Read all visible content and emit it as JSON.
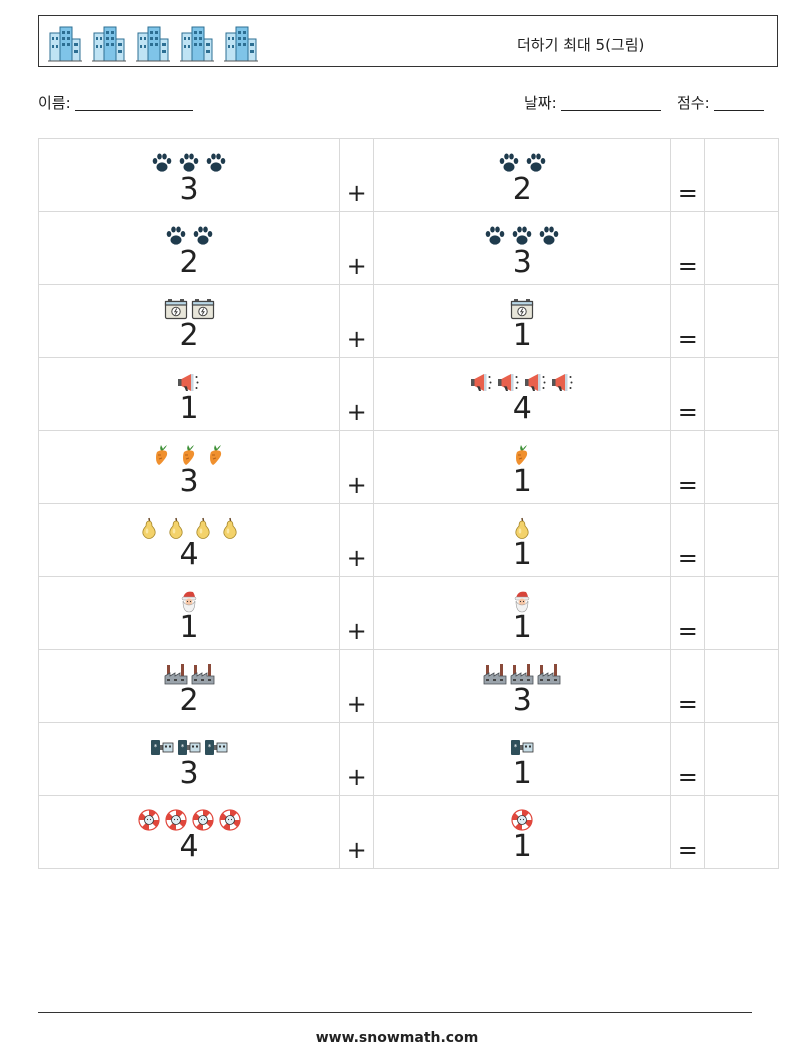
{
  "title": "더하기 최대 5(그림)",
  "fields": {
    "name_label": "이름:",
    "date_label": "날짜:",
    "score_label": "점수:"
  },
  "header_icons": [
    "building-icon",
    "building-icon",
    "building-icon",
    "building-icon",
    "building-icon"
  ],
  "operators": {
    "plus": "+",
    "equals": "="
  },
  "problems": [
    {
      "a": "3",
      "b": "2",
      "icon": "paw-icon"
    },
    {
      "a": "2",
      "b": "3",
      "icon": "paw-icon"
    },
    {
      "a": "2",
      "b": "1",
      "icon": "battery-icon"
    },
    {
      "a": "1",
      "b": "4",
      "icon": "megaphone-icon"
    },
    {
      "a": "3",
      "b": "1",
      "icon": "carrot-icon"
    },
    {
      "a": "4",
      "b": "1",
      "icon": "pear-icon"
    },
    {
      "a": "1",
      "b": "1",
      "icon": "santa-icon"
    },
    {
      "a": "2",
      "b": "3",
      "icon": "factory-icon"
    },
    {
      "a": "3",
      "b": "1",
      "icon": "usb-icon"
    },
    {
      "a": "4",
      "b": "1",
      "icon": "lifebuoy-icon"
    }
  ],
  "footer": "www.snowmath.com"
}
